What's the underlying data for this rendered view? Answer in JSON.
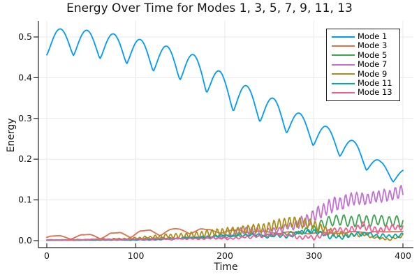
{
  "chart_data": {
    "type": "line",
    "title": "Energy Over Time for Modes 1, 3, 5, 7, 9, 11, 13",
    "xlabel": "Time",
    "ylabel": "Energy",
    "xlim": [
      -10,
      412
    ],
    "ylim": [
      -0.017,
      0.539
    ],
    "x_ticks": [
      0,
      100,
      200,
      300,
      400
    ],
    "y_ticks": [
      0,
      0.1,
      0.2,
      0.3,
      0.4,
      0.5
    ],
    "y_tick_labels": [
      "0.0",
      "0.1",
      "0.2",
      "0.3",
      "0.4",
      "0.5"
    ],
    "grid": true,
    "legend_position": "top-right",
    "series": [
      {
        "name": "Mode 1",
        "color": "#009AFA",
        "trend_points": [
          [
            0,
            0.488
          ],
          [
            30,
            0.487
          ],
          [
            60,
            0.48
          ],
          [
            90,
            0.468
          ],
          [
            120,
            0.451
          ],
          [
            150,
            0.431
          ],
          [
            175,
            0.41
          ],
          [
            200,
            0.366
          ],
          [
            230,
            0.337
          ],
          [
            260,
            0.309
          ],
          [
            290,
            0.273
          ],
          [
            320,
            0.245
          ],
          [
            350,
            0.212
          ],
          [
            375,
            0.172
          ],
          [
            400,
            0.158
          ]
        ],
        "oscillation": {
          "period": 29.92,
          "phase_deg": -90,
          "shape": "sharp-trough",
          "sharp_exp": 0.6,
          "amp_points": [
            [
              0,
              0.032
            ],
            [
              100,
              0.034
            ],
            [
              200,
              0.04
            ],
            [
              300,
              0.031
            ],
            [
              350,
              0.026
            ],
            [
              400,
              0.018
            ]
          ]
        },
        "noise": {
          "amp_points": [
            [
              0,
              0
            ],
            [
              400,
              0
            ]
          ],
          "step": 8,
          "seed": 1
        }
      },
      {
        "name": "Mode 3",
        "color": "#E26E47",
        "trend_points": [
          [
            0,
            0.003
          ],
          [
            40,
            0.004
          ],
          [
            80,
            0.006
          ],
          [
            120,
            0.011
          ],
          [
            160,
            0.016
          ],
          [
            200,
            0.019
          ],
          [
            250,
            0.018
          ],
          [
            300,
            0.016
          ],
          [
            350,
            0.017
          ],
          [
            400,
            0.021
          ]
        ],
        "oscillation": {
          "period": 33.5,
          "phase_deg": 36,
          "shape": "arch",
          "amp_points": [
            [
              0,
              0.008
            ],
            [
              50,
              0.011
            ],
            [
              90,
              0.014
            ],
            [
              130,
              0.016
            ],
            [
              160,
              0.013
            ],
            [
              200,
              0.008
            ],
            [
              250,
              0.004
            ],
            [
              300,
              0.003
            ],
            [
              400,
              0.004
            ]
          ]
        },
        "noise": {
          "amp_points": [
            [
              0,
              0.0003
            ],
            [
              150,
              0.001
            ],
            [
              250,
              0.002
            ],
            [
              400,
              0.002
            ]
          ],
          "step": 6,
          "seed": 3
        }
      },
      {
        "name": "Mode 5",
        "color": "#3DA44E",
        "trend_points": [
          [
            0,
            0.001
          ],
          [
            60,
            0.002
          ],
          [
            100,
            0.004
          ],
          [
            150,
            0.007
          ],
          [
            200,
            0.011
          ],
          [
            250,
            0.014
          ],
          [
            285,
            0.018
          ],
          [
            305,
            0.035
          ],
          [
            320,
            0.05
          ],
          [
            350,
            0.048
          ],
          [
            375,
            0.05
          ],
          [
            400,
            0.046
          ]
        ],
        "oscillation": {
          "period": 8.5,
          "phase_deg": 0,
          "shape": "sine",
          "amp_points": [
            [
              0,
              0.0003
            ],
            [
              100,
              0.001
            ],
            [
              200,
              0.002
            ],
            [
              280,
              0.004
            ],
            [
              310,
              0.012
            ],
            [
              340,
              0.014
            ],
            [
              400,
              0.012
            ]
          ]
        },
        "noise": {
          "amp_points": [
            [
              0,
              0.0003
            ],
            [
              200,
              0.002
            ],
            [
              300,
              0.003
            ],
            [
              400,
              0.003
            ]
          ],
          "step": 7,
          "seed": 5
        }
      },
      {
        "name": "Mode 7",
        "color": "#C271D2",
        "trend_points": [
          [
            0,
            0.001
          ],
          [
            100,
            0.002
          ],
          [
            150,
            0.004
          ],
          [
            180,
            0.008
          ],
          [
            200,
            0.01
          ],
          [
            220,
            0.026
          ],
          [
            240,
            0.02
          ],
          [
            260,
            0.028
          ],
          [
            280,
            0.04
          ],
          [
            300,
            0.06
          ],
          [
            320,
            0.085
          ],
          [
            340,
            0.1
          ],
          [
            360,
            0.1
          ],
          [
            380,
            0.11
          ],
          [
            400,
            0.122
          ]
        ],
        "oscillation": {
          "period": 6.2,
          "phase_deg": 40,
          "shape": "sine",
          "amp_points": [
            [
              0,
              0.0002
            ],
            [
              150,
              0.001
            ],
            [
              200,
              0.004
            ],
            [
              230,
              0.01
            ],
            [
              260,
              0.006
            ],
            [
              290,
              0.014
            ],
            [
              320,
              0.018
            ],
            [
              360,
              0.014
            ],
            [
              400,
              0.015
            ]
          ]
        },
        "noise": {
          "amp_points": [
            [
              0,
              0.0003
            ],
            [
              200,
              0.002
            ],
            [
              300,
              0.004
            ],
            [
              400,
              0.004
            ]
          ],
          "step": 5,
          "seed": 7
        }
      },
      {
        "name": "Mode 9",
        "color": "#AC8D18",
        "trend_points": [
          [
            0,
            0.001
          ],
          [
            50,
            0.002
          ],
          [
            100,
            0.005
          ],
          [
            130,
            0.011
          ],
          [
            160,
            0.013
          ],
          [
            185,
            0.02
          ],
          [
            205,
            0.022
          ],
          [
            225,
            0.028
          ],
          [
            245,
            0.03
          ],
          [
            262,
            0.042
          ],
          [
            278,
            0.045
          ],
          [
            295,
            0.04
          ],
          [
            310,
            0.03
          ],
          [
            325,
            0.015
          ],
          [
            340,
            0.012
          ],
          [
            355,
            0.015
          ],
          [
            370,
            0.006
          ],
          [
            385,
            0.002
          ],
          [
            400,
            0.012
          ]
        ],
        "oscillation": {
          "period": 5.8,
          "phase_deg": 90,
          "shape": "sine",
          "amp_points": [
            [
              0,
              0.0003
            ],
            [
              100,
              0.002
            ],
            [
              150,
              0.006
            ],
            [
              200,
              0.009
            ],
            [
              250,
              0.012
            ],
            [
              280,
              0.013
            ],
            [
              310,
              0.01
            ],
            [
              340,
              0.005
            ],
            [
              370,
              0.002
            ],
            [
              400,
              0.003
            ]
          ]
        },
        "noise": {
          "amp_points": [
            [
              0,
              0.0005
            ],
            [
              150,
              0.002
            ],
            [
              300,
              0.003
            ],
            [
              400,
              0.002
            ]
          ],
          "step": 5,
          "seed": 9
        }
      },
      {
        "name": "Mode 11",
        "color": "#00A9AD",
        "trend_points": [
          [
            0,
            0.001
          ],
          [
            80,
            0.002
          ],
          [
            120,
            0.003
          ],
          [
            160,
            0.006
          ],
          [
            200,
            0.012
          ],
          [
            230,
            0.014
          ],
          [
            250,
            0.01
          ],
          [
            270,
            0.013
          ],
          [
            290,
            0.022
          ],
          [
            300,
            0.024
          ],
          [
            315,
            0.012
          ],
          [
            330,
            0.01
          ],
          [
            345,
            0.013
          ],
          [
            360,
            0.018
          ],
          [
            375,
            0.012
          ],
          [
            390,
            0.01
          ],
          [
            400,
            0.016
          ]
        ],
        "oscillation": {
          "period": 7.0,
          "phase_deg": 120,
          "shape": "sine",
          "amp_points": [
            [
              0,
              0.0002
            ],
            [
              150,
              0.001
            ],
            [
              250,
              0.003
            ],
            [
              300,
              0.005
            ],
            [
              350,
              0.004
            ],
            [
              400,
              0.004
            ]
          ]
        },
        "noise": {
          "amp_points": [
            [
              0,
              0.0004
            ],
            [
              200,
              0.002
            ],
            [
              300,
              0.0035
            ],
            [
              400,
              0.003
            ]
          ],
          "step": 6,
          "seed": 11
        }
      },
      {
        "name": "Mode 13",
        "color": "#ED5E93",
        "trend_points": [
          [
            0,
            0.002
          ],
          [
            60,
            0.003
          ],
          [
            100,
            0.004
          ],
          [
            140,
            0.005
          ],
          [
            180,
            0.006
          ],
          [
            200,
            0.005
          ],
          [
            220,
            0.008
          ],
          [
            240,
            0.012
          ],
          [
            260,
            0.018
          ],
          [
            280,
            0.01
          ],
          [
            300,
            0.008
          ],
          [
            315,
            0.02
          ],
          [
            330,
            0.025
          ],
          [
            345,
            0.03
          ],
          [
            355,
            0.038
          ],
          [
            365,
            0.03
          ],
          [
            375,
            0.025
          ],
          [
            385,
            0.03
          ],
          [
            400,
            0.033
          ]
        ],
        "oscillation": {
          "period": 6.5,
          "phase_deg": 200,
          "shape": "sine",
          "amp_points": [
            [
              0,
              0.0003
            ],
            [
              150,
              0.001
            ],
            [
              250,
              0.003
            ],
            [
              320,
              0.005
            ],
            [
              360,
              0.008
            ],
            [
              400,
              0.006
            ]
          ]
        },
        "noise": {
          "amp_points": [
            [
              0,
              0.0005
            ],
            [
              150,
              0.0015
            ],
            [
              300,
              0.003
            ],
            [
              400,
              0.003
            ]
          ],
          "step": 6,
          "seed": 13
        }
      }
    ]
  },
  "style_colors": {
    "axis": "#262626",
    "grid": "#e8e8e8",
    "tick_text": "#151515",
    "background": "#ffffff"
  }
}
